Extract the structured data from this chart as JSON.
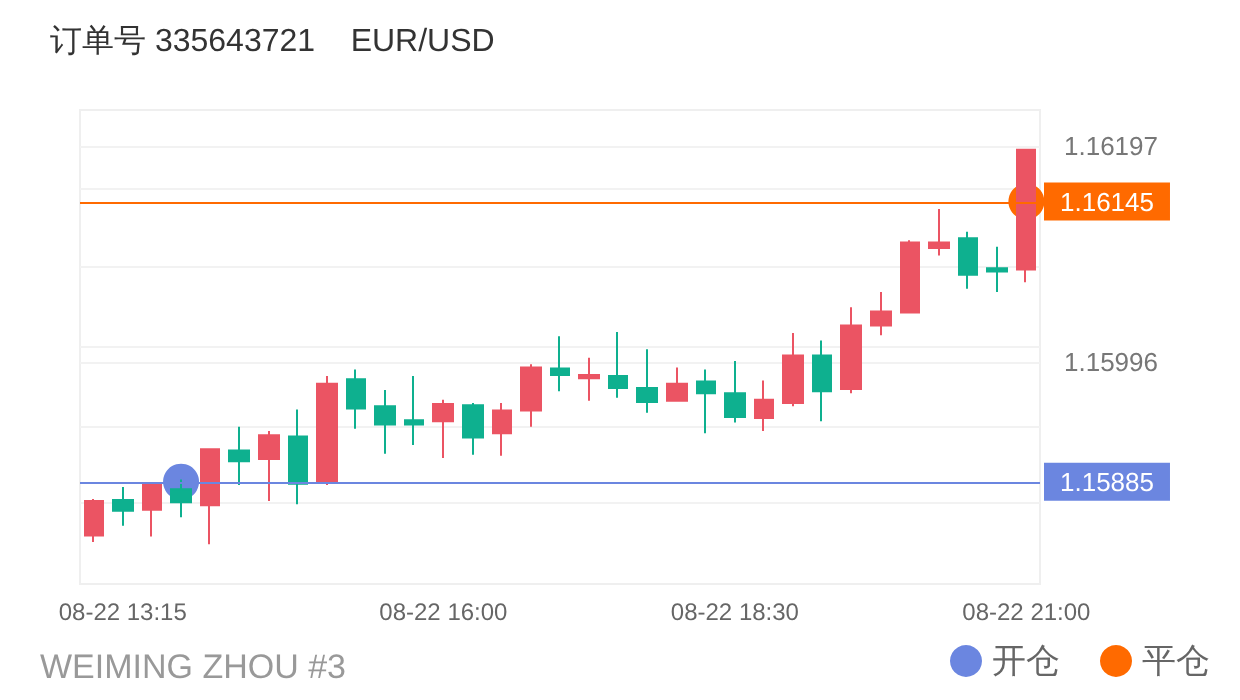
{
  "chart_data": {
    "type": "candlestick",
    "title": "订单号 335643721    EUR/USD",
    "annotations": [
      "WEIMING ZHOU #3"
    ],
    "xlim": [
      "--08-22T12:53",
      "--08-22T21:07"
    ],
    "xticks": [
      {
        "value": "--08-22T13:15",
        "label": "08-22 13:15"
      },
      {
        "value": "--08-22T16:00",
        "label": "08-22 16:00"
      },
      {
        "value": "--08-22T18:30",
        "label": "08-22 18:30"
      },
      {
        "value": "--08-22T21:00",
        "label": "08-22 21:00"
      }
    ],
    "ylim": [
      1.1579,
      1.1623
    ],
    "yticks": [
      {
        "value": 1.15865,
        "label": null
      },
      {
        "value": 1.15937,
        "label": null
      },
      1.15996,
      {
        "value": 1.16011,
        "label": null
      },
      {
        "value": 1.16085,
        "label": null
      },
      {
        "value": 1.16158,
        "label": null
      },
      1.16197
    ],
    "grid": "y",
    "legend": "bottom right",
    "ref_lines": [
      {
        "axis": "y",
        "value": 1.16145,
        "label": "1.16145",
        "color": "#ff6a00"
      },
      {
        "axis": "y",
        "value": 1.15885,
        "label": "1.15885",
        "color": "#6b86e0"
      }
    ],
    "series": [
      {
        "x": [
          "--08-22T13:00",
          "--08-22T13:15",
          "--08-22T13:30",
          "--08-22T13:45",
          "--08-22T14:00",
          "--08-22T14:15",
          "--08-22T14:30",
          "--08-22T14:45",
          "--08-22T15:00",
          "--08-22T15:15",
          "--08-22T15:30",
          "--08-22T15:45",
          "--08-22T16:00",
          "--08-22T16:15",
          "--08-22T16:30",
          "--08-22T16:45",
          "--08-22T17:00",
          "--08-22T17:15",
          "--08-22T17:30",
          "--08-22T17:45",
          "--08-22T18:00",
          "--08-22T18:15",
          "--08-22T18:30",
          "--08-22T18:45",
          "--08-22T19:00",
          "--08-22T19:15",
          "--08-22T19:30",
          "--08-22T19:45",
          "--08-22T20:00",
          "--08-22T20:15",
          "--08-22T20:30",
          "--08-22T20:45",
          "--08-22T21:00"
        ],
        "ohlc": [
          [
            1.15835,
            1.15869,
            1.15829,
            1.15867
          ],
          [
            1.15868,
            1.1588,
            1.15844,
            1.15858
          ],
          [
            1.15859,
            1.15884,
            1.15834,
            1.15882
          ],
          [
            1.15878,
            1.15887,
            1.15852,
            1.15866
          ],
          [
            1.15863,
            1.15916,
            1.15827,
            1.15915
          ],
          [
            1.15914,
            1.15936,
            1.15882,
            1.15904
          ],
          [
            1.15906,
            1.15932,
            1.15867,
            1.15928
          ],
          [
            1.15927,
            1.15952,
            1.15864,
            1.15883
          ],
          [
            1.15885,
            1.15983,
            1.15882,
            1.15976
          ],
          [
            1.1598,
            1.15989,
            1.15934,
            1.15953
          ],
          [
            1.15955,
            1.1597,
            1.15911,
            1.15938
          ],
          [
            1.15942,
            1.15983,
            1.15919,
            1.15938
          ],
          [
            1.15941,
            1.15961,
            1.15907,
            1.15957
          ],
          [
            1.15956,
            1.15958,
            1.1591,
            1.15926
          ],
          [
            1.1593,
            1.15958,
            1.15909,
            1.15951
          ],
          [
            1.15951,
            1.15994,
            1.15936,
            1.15991
          ],
          [
            1.1599,
            1.1602,
            1.15969,
            1.15984
          ],
          [
            1.15981,
            1.16,
            1.1596,
            1.15984
          ],
          [
            1.15983,
            1.16024,
            1.15963,
            1.15972
          ],
          [
            1.15972,
            1.16008,
            1.15949,
            1.15959
          ],
          [
            1.1596,
            1.15991,
            1.1596,
            1.15976
          ],
          [
            1.15978,
            1.15989,
            1.1593,
            1.15967
          ],
          [
            1.15967,
            1.15997,
            1.1594,
            1.15945
          ],
          [
            1.15944,
            1.15979,
            1.15932,
            1.15961
          ],
          [
            1.15958,
            1.16023,
            1.15955,
            1.16002
          ],
          [
            1.16002,
            1.16016,
            1.15941,
            1.15969
          ],
          [
            1.15971,
            1.16047,
            1.15967,
            1.1603
          ],
          [
            1.1603,
            1.16061,
            1.16021,
            1.16043
          ],
          [
            1.16042,
            1.16109,
            1.16041,
            1.16107
          ],
          [
            1.16102,
            1.16138,
            1.16095,
            1.16107
          ],
          [
            1.16111,
            1.16117,
            1.16064,
            1.16077
          ],
          [
            1.16083,
            1.16103,
            1.16061,
            1.1608
          ],
          [
            1.16082,
            1.16194,
            1.1607,
            1.16193
          ]
        ],
        "colors": [
          "#eb5463",
          "#0eb08f",
          "#eb5463",
          "#0eb08f",
          "#eb5463",
          "#0eb08f",
          "#eb5463",
          "#0eb08f",
          "#eb5463",
          "#0eb08f",
          "#0eb08f",
          "#0eb08f",
          "#eb5463",
          "#0eb08f",
          "#eb5463",
          "#eb5463",
          "#0eb08f",
          "#eb5463",
          "#0eb08f",
          "#0eb08f",
          "#eb5463",
          "#0eb08f",
          "#0eb08f",
          "#eb5463",
          "#eb5463",
          "#0eb08f",
          "#eb5463",
          "#eb5463",
          "#eb5463",
          "#eb5463",
          "#0eb08f",
          "#0eb08f",
          "#eb5463"
        ]
      },
      {
        "type": "scatter",
        "name": "开仓",
        "color": "#6b86e0",
        "marker": "circle",
        "x": [
          "--08-22T13:45"
        ],
        "values": [
          1.15885
        ]
      },
      {
        "type": "scatter",
        "name": "平仓",
        "color": "#ff6a00",
        "marker": "circle",
        "x": [
          "--08-22T21:00"
        ],
        "values": [
          1.16145
        ]
      }
    ]
  }
}
